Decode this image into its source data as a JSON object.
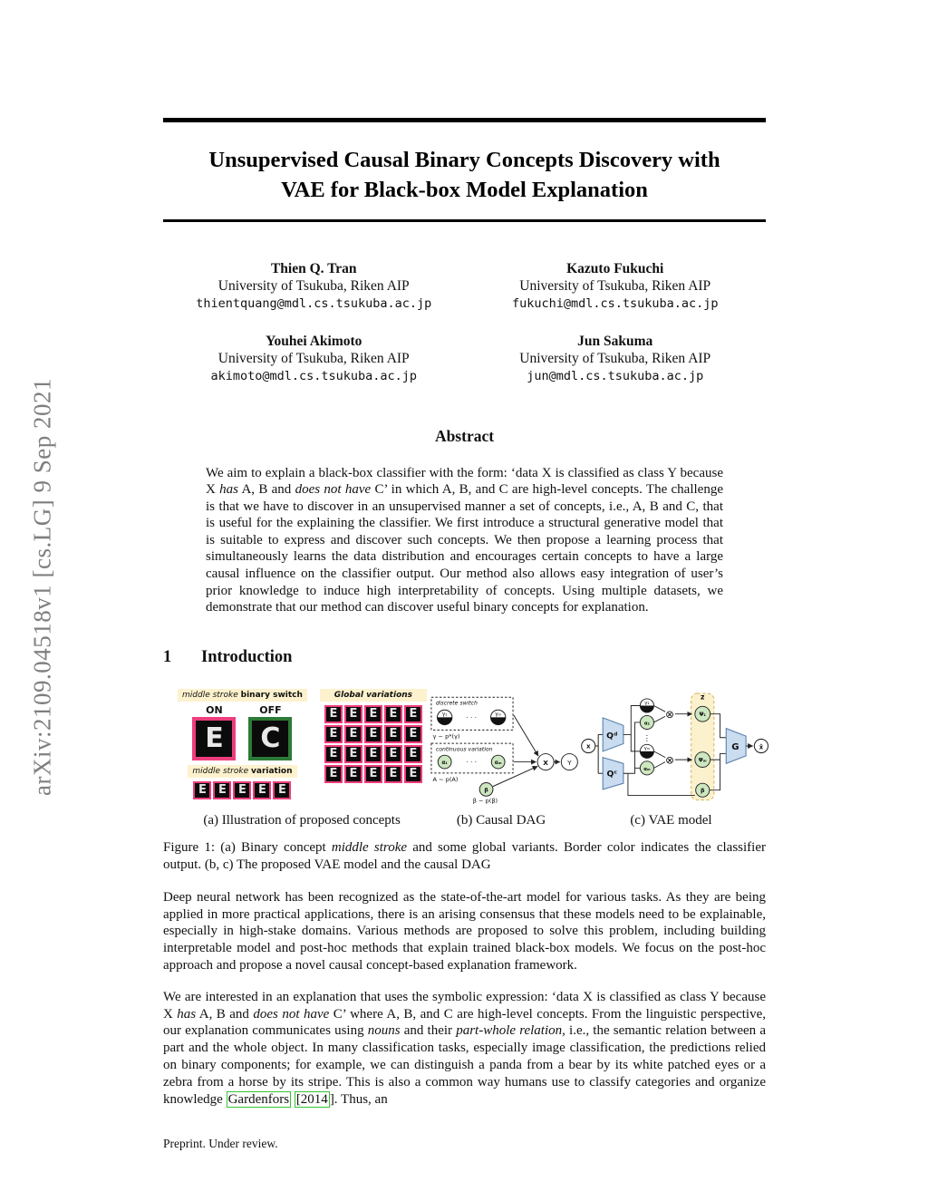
{
  "sidebar": {
    "text": "arXiv:2109.04518v1  [cs.LG]  9 Sep 2021"
  },
  "title": {
    "line1": "Unsupervised Causal Binary Concepts Discovery with",
    "line2": "VAE for Black-box Model Explanation"
  },
  "authors": [
    {
      "name": "Thien Q. Tran",
      "affiliation": "University of Tsukuba, Riken AIP",
      "email": "thientquang@mdl.cs.tsukuba.ac.jp"
    },
    {
      "name": "Kazuto Fukuchi",
      "affiliation": "University of Tsukuba, Riken AIP",
      "email": "fukuchi@mdl.cs.tsukuba.ac.jp"
    },
    {
      "name": "Youhei Akimoto",
      "affiliation": "University of Tsukuba, Riken AIP",
      "email": "akimoto@mdl.cs.tsukuba.ac.jp"
    },
    {
      "name": "Jun Sakuma",
      "affiliation": "University of Tsukuba, Riken AIP",
      "email": "jun@mdl.cs.tsukuba.ac.jp"
    }
  ],
  "abstract": {
    "heading": "Abstract",
    "seg1": "We aim to explain a black-box classifier with the form: ‘data X is classified as class Y because X ",
    "italic1": "has",
    "seg2": " A, B and ",
    "italic2": "does not have",
    "seg3": " C’ in which A, B, and C are high-level concepts. The challenge is that we have to discover in an unsupervised manner a set of concepts, i.e., A, B and C, that is useful for the explaining the classifier. We first introduce a structural generative model that is suitable to express and discover such concepts. We then propose a learning process that simultaneously learns the data distribution and encourages certain concepts to have a large causal influence on the classifier output. Our method also allows easy integration of user’s prior knowledge to induce high interpretability of concepts. Using multiple datasets, we demonstrate that our method can discover useful binary concepts for explanation."
  },
  "intro": {
    "number": "1",
    "heading": "Introduction",
    "p1": "Deep neural network has been recognized as the state-of-the-art model for various tasks. As they are being applied in more practical applications, there is an arising consensus that these models need to be explainable, especially in high-stake domains. Various methods are proposed to solve this problem, including building interpretable model and post-hoc methods that explain trained black-box models. We focus on the post-hoc approach and propose a novel causal concept-based explanation framework.",
    "p2": {
      "seg1": "We are interested in an explanation that uses the symbolic expression: ‘data X is classified as class Y because X ",
      "italic1": "has",
      "seg2": " A, B and ",
      "italic2": "does not have",
      "seg3": " C’ where A, B, and C are high-level concepts. From the linguistic perspective, our explanation communicates using ",
      "italic3": "nouns",
      "seg4": " and their ",
      "italic4": "part-whole relation",
      "seg5": ", i.e., the semantic relation between a part and the whole object. In many classification tasks, especially image classification, the predictions relied on binary components; for example, we can distinguish a panda from a bear by its white patched eyes or a zebra from a horse by its stripe. This is also a common way humans use to classify categories and organize knowledge ",
      "cite1": "Gardenfors",
      "seg6": " ",
      "cite2": "[2014",
      "seg7": "]. Thus, an"
    }
  },
  "figure": {
    "panel_a": {
      "bar1_italic": "middle stroke",
      "bar1_bold": "binary switch",
      "on_label": "ON",
      "off_label": "OFF",
      "switch_on_letter": "E",
      "switch_off_letter": "C",
      "bar2_italic": "middle stroke",
      "bar2_bold": "variation",
      "bar3": "Global variations",
      "variation_tiles": [
        "E",
        "E",
        "E",
        "E",
        "E"
      ],
      "global_tiles": [
        "E",
        "E",
        "E",
        "E",
        "E",
        "E",
        "E",
        "E",
        "E",
        "E",
        "E",
        "E",
        "E",
        "E",
        "E",
        "E",
        "E",
        "E",
        "E",
        "E"
      ]
    },
    "panel_b": {
      "discrete_label": "discrete switch",
      "gamma1": "γ₁",
      "gammaM": "γₘ",
      "dots": "· · ·",
      "gamma_dist": "γ ~ p*(γ)",
      "continuous_label": "continuous variation",
      "alpha1": "α₁",
      "alphaM": "αₘ",
      "alpha_dist": "A ~ p(A)",
      "beta": "β",
      "beta_dist": "β ~ p(β)",
      "x_node": "X",
      "y_node": "Y"
    },
    "panel_c": {
      "x_in": "x",
      "qd": "Qᵈ",
      "qc": "Qᶜ",
      "gamma1": "γ₁",
      "alpha1": "α₁",
      "vdots": "⋮",
      "gammaM": "γₘ",
      "alphaM": "αₘ",
      "otimes": "⊗",
      "z_label": "z",
      "psi1": "Ψ₁",
      "psiM": "Ψₘ",
      "beta": "β",
      "g": "G",
      "xhat": "x̂"
    },
    "subcaption_a": "(a) Illustration of proposed concepts",
    "subcaption_b": "(b) Causal DAG",
    "subcaption_c": "(c) VAE model",
    "caption": {
      "seg1": "Figure 1: (a) Binary concept ",
      "italic": "middle stroke",
      "seg2": " and some global variants. Border color indicates the classifier output. (b, c) The proposed VAE model and the causal DAG"
    }
  },
  "footer": {
    "text": "Preprint. Under review."
  },
  "colors": {
    "classifier_on_border": "#ee3d7d",
    "classifier_off_border": "#2c7a36",
    "concept_label_bg": "#fdf2cd",
    "citation_box": "#35c435",
    "node_green": "#cde7c0",
    "encoder_blue": "#c9dcf0",
    "z_region_bg": "#fcf1cd",
    "stamp_gray": "#7f7f7f"
  }
}
